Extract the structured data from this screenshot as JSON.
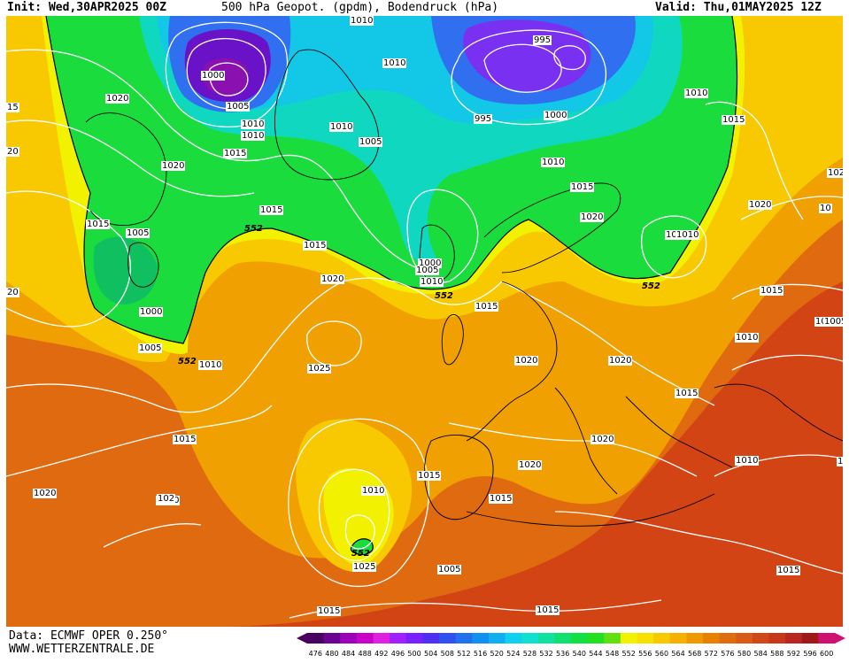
{
  "header": {
    "init": "Init: Wed,30APR2025 00Z",
    "title": "500 hPa Geopot. (gpdm), Bodendruck (hPa)",
    "valid": "Valid: Thu,01MAY2025 12Z"
  },
  "footer": {
    "source": "Data: ECMWF OPER 0.250°",
    "site": "WWW.WETTERZENTRALE.DE"
  },
  "colors": {
    "deep_low": "#6a12c8",
    "blue_low": "#2244e0",
    "cyan": "#12c8e6",
    "green": "#1adc3c",
    "yellow": "#f2f200",
    "orange": "#f0a000",
    "dark_orange": "#e06a10",
    "red": "#d24414",
    "isobar": "#ffffff"
  },
  "scale": {
    "ticks": [
      "476",
      "480",
      "484",
      "488",
      "492",
      "496",
      "500",
      "504",
      "508",
      "512",
      "516",
      "520",
      "524",
      "528",
      "532",
      "536",
      "540",
      "544",
      "548",
      "552",
      "556",
      "560",
      "564",
      "568",
      "572",
      "576",
      "580",
      "584",
      "588",
      "592",
      "596",
      "600"
    ],
    "colors": [
      "#4a0060",
      "#6c0090",
      "#9c00b8",
      "#c800c8",
      "#e020e0",
      "#a020ff",
      "#7820ff",
      "#5030f0",
      "#3050f0",
      "#2070f0",
      "#1090f0",
      "#10b0f0",
      "#10d0f0",
      "#10e0d0",
      "#10e0a0",
      "#10e070",
      "#10e040",
      "#20e020",
      "#60e010",
      "#f2f200",
      "#f8e000",
      "#f8c800",
      "#f8b000",
      "#f09800",
      "#e88000",
      "#e06c10",
      "#d85c18",
      "#d04818",
      "#c83818",
      "#b82820",
      "#a01818",
      "#d01070"
    ]
  },
  "labels": [
    {
      "text": "1010"
    },
    {
      "text": "1010"
    },
    {
      "text": "995"
    },
    {
      "text": "1020"
    },
    {
      "text": "15"
    },
    {
      "text": "1000"
    },
    {
      "text": "1005"
    },
    {
      "text": "1010"
    },
    {
      "text": "1010"
    },
    {
      "text": "1010"
    },
    {
      "text": "995"
    },
    {
      "text": "1000"
    },
    {
      "text": "1010"
    },
    {
      "text": "1015"
    },
    {
      "text": "20"
    },
    {
      "text": "1005"
    },
    {
      "text": "1015"
    },
    {
      "text": "1020"
    },
    {
      "text": "1010"
    },
    {
      "text": "1015"
    },
    {
      "text": "1015"
    },
    {
      "text": "1010"
    },
    {
      "text": "1015"
    },
    {
      "text": "1005"
    },
    {
      "text": "1020"
    },
    {
      "text": "1020"
    },
    {
      "text": "102"
    },
    {
      "text": "1015"
    },
    {
      "text": "1000"
    },
    {
      "text": "1005"
    },
    {
      "text": "1010"
    },
    {
      "text": "1015"
    },
    {
      "text": "1010"
    },
    {
      "text": "1015"
    },
    {
      "text": "1020"
    },
    {
      "text": "1015"
    },
    {
      "text": "1005"
    },
    {
      "text": "20"
    },
    {
      "text": "1000"
    },
    {
      "text": "1010"
    },
    {
      "text": "1025"
    },
    {
      "text": "1020"
    },
    {
      "text": "1020"
    },
    {
      "text": "1010"
    },
    {
      "text": "1015"
    },
    {
      "text": "1005"
    },
    {
      "text": "1020"
    },
    {
      "text": "1020"
    },
    {
      "text": "1015"
    },
    {
      "text": "1010"
    },
    {
      "text": "1020"
    },
    {
      "text": "1015"
    },
    {
      "text": "1010"
    },
    {
      "text": "1015"
    },
    {
      "text": "1020"
    },
    {
      "text": "1025"
    },
    {
      "text": "1005"
    },
    {
      "text": "1015"
    },
    {
      "text": "1015"
    },
    {
      "text": "1015"
    },
    {
      "text": "1015"
    },
    {
      "text": "10"
    },
    {
      "text": "102"
    },
    {
      "text": "1010"
    }
  ],
  "contour_552_labels": [
    {
      "text": "552"
    },
    {
      "text": "552"
    },
    {
      "text": "552"
    },
    {
      "text": "552"
    },
    {
      "text": "552"
    }
  ]
}
